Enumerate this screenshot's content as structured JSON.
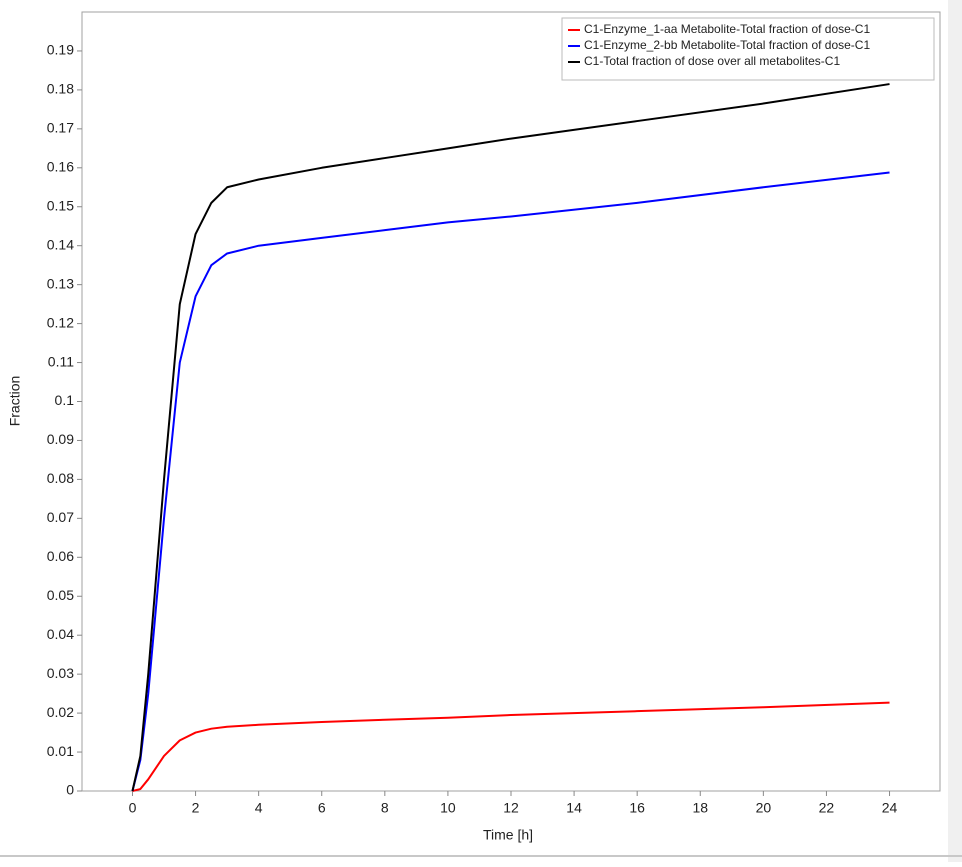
{
  "chart_data": {
    "type": "line",
    "xlabel": "Time [h]",
    "ylabel": "Fraction",
    "x": [
      0,
      0.25,
      0.5,
      1,
      1.5,
      2,
      2.5,
      3,
      4,
      6,
      8,
      10,
      12,
      16,
      20,
      24
    ],
    "series": [
      {
        "name": "C1-Enzyme_1-aa Metabolite-Total fraction of dose-C1",
        "color": "#ff0000",
        "values": [
          0,
          0.0005,
          0.003,
          0.009,
          0.013,
          0.015,
          0.016,
          0.0165,
          0.017,
          0.0177,
          0.0183,
          0.0188,
          0.0195,
          0.0205,
          0.0215,
          0.0227
        ]
      },
      {
        "name": "C1-Enzyme_2-bb Metabolite-Total fraction of dose-C1",
        "color": "#0000ff",
        "values": [
          0,
          0.008,
          0.025,
          0.07,
          0.11,
          0.127,
          0.135,
          0.138,
          0.14,
          0.142,
          0.144,
          0.146,
          0.1475,
          0.151,
          0.155,
          0.1588
        ]
      },
      {
        "name": "C1-Total fraction of dose over all metabolites-C1",
        "color": "#000000",
        "values": [
          0,
          0.009,
          0.03,
          0.08,
          0.125,
          0.143,
          0.151,
          0.155,
          0.157,
          0.16,
          0.1625,
          0.165,
          0.1675,
          0.172,
          0.1765,
          0.1815
        ]
      }
    ],
    "xlim": [
      -1.6,
      25.6
    ],
    "ylim": [
      0,
      0.2
    ],
    "xticks": [
      0,
      2,
      4,
      6,
      8,
      10,
      12,
      14,
      16,
      18,
      20,
      22,
      24
    ],
    "yticks": [
      0,
      0.01,
      0.02,
      0.03,
      0.04,
      0.05,
      0.06,
      0.07,
      0.08,
      0.09,
      0.1,
      0.11,
      0.12,
      0.13,
      0.14,
      0.15,
      0.16,
      0.17,
      0.18,
      0.19
    ],
    "legend": "upper-right"
  }
}
